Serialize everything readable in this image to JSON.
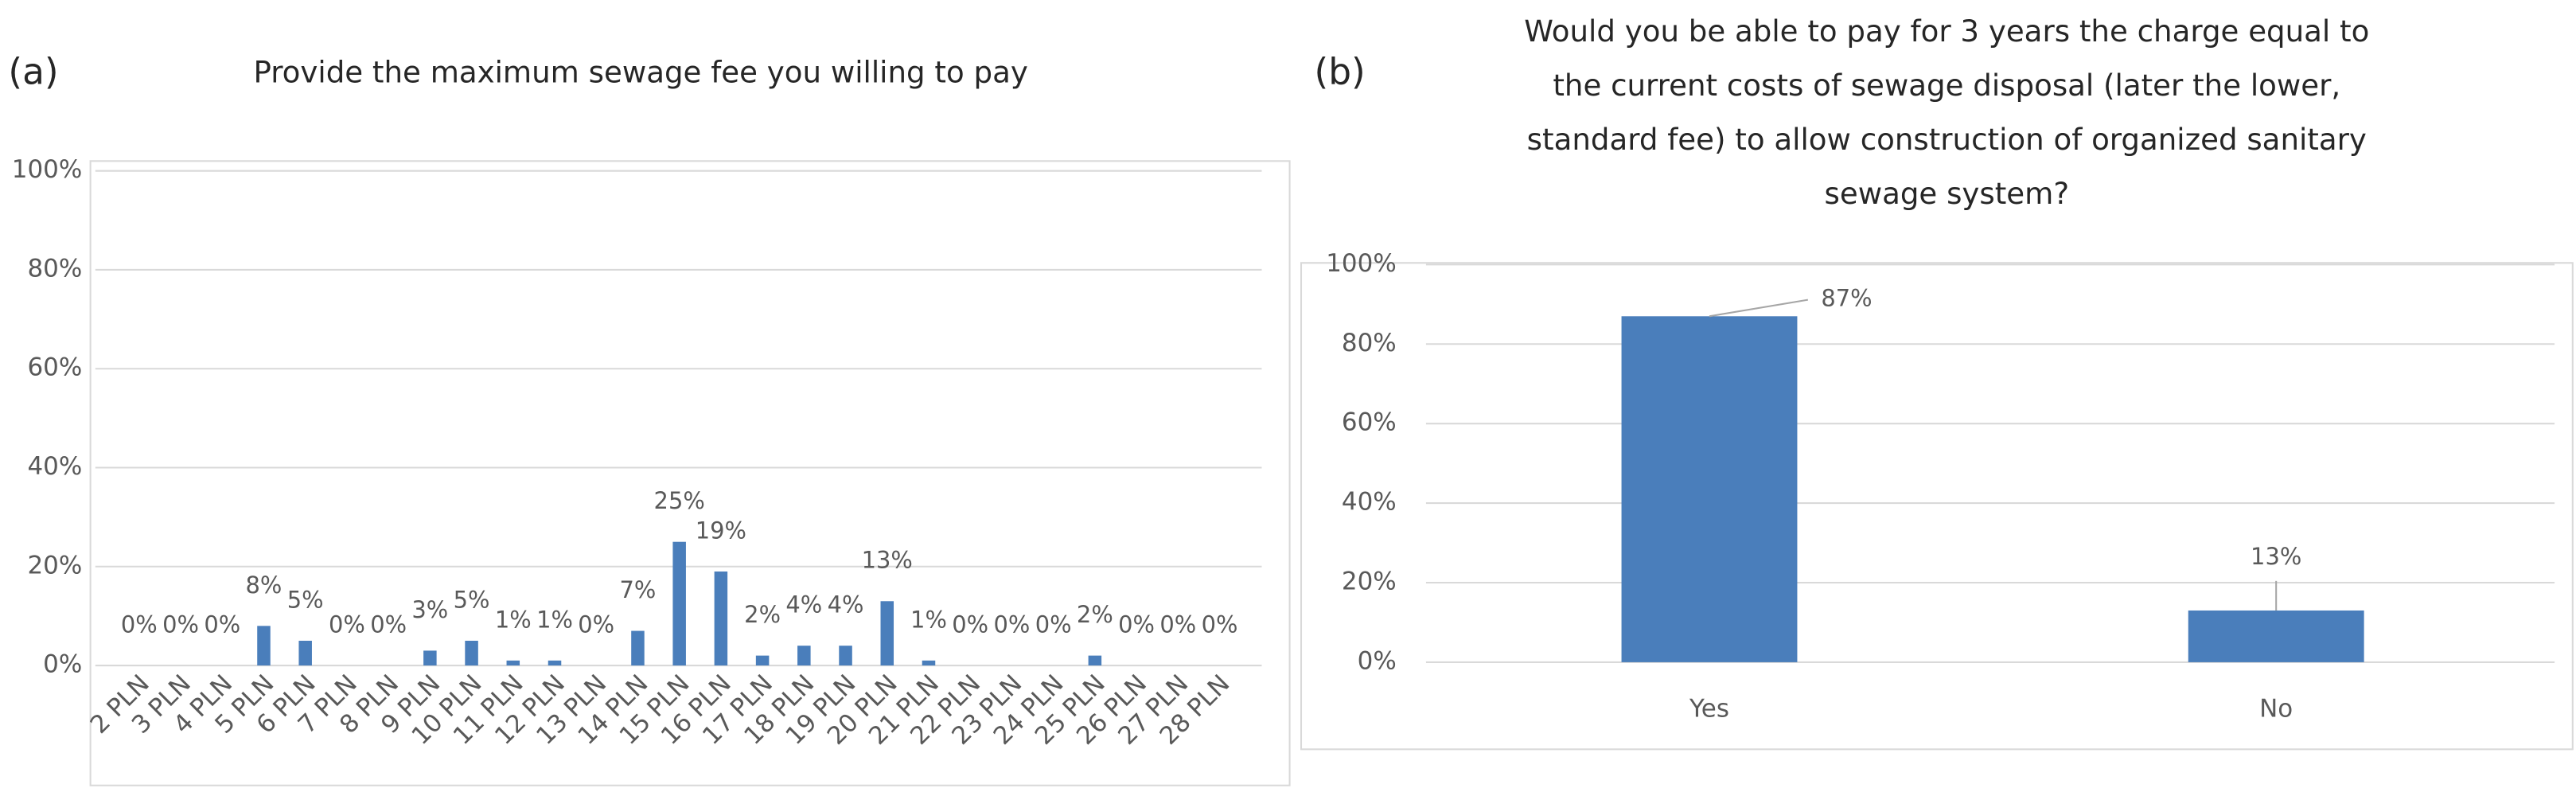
{
  "chart_data": [
    {
      "type": "bar",
      "label": "(a)",
      "title": [
        "Provide the maximum sewage fee you willing to pay"
      ],
      "categories": [
        "2 PLN",
        "3 PLN",
        "4 PLN",
        "5 PLN",
        "6 PLN",
        "7 PLN",
        "8 PLN",
        "9 PLN",
        "10 PLN",
        "11 PLN",
        "12 PLN",
        "13 PLN",
        "14 PLN",
        "15 PLN",
        "16 PLN",
        "17 PLN",
        "18 PLN",
        "19 PLN",
        "20 PLN",
        "21 PLN",
        "22 PLN",
        "23 PLN",
        "24 PLN",
        "25 PLN",
        "26 PLN",
        "27 PLN",
        "28 PLN"
      ],
      "values": [
        0,
        0,
        0,
        8,
        5,
        0,
        0,
        3,
        5,
        1,
        1,
        0,
        7,
        25,
        19,
        2,
        4,
        4,
        13,
        1,
        0,
        0,
        0,
        2,
        0,
        0,
        0
      ],
      "value_labels": [
        "0%",
        "0%",
        "0%",
        "8%",
        "5%",
        "0%",
        "0%",
        "3%",
        "5%",
        "1%",
        "1%",
        "0%",
        "7%",
        "25%",
        "19%",
        "2%",
        "4%",
        "4%",
        "13%",
        "1%",
        "0%",
        "0%",
        "0%",
        "2%",
        "0%",
        "0%",
        "0%"
      ],
      "color": "#4a7ebb",
      "ylim": [
        0,
        100
      ],
      "yticks": [
        {
          "value": 0,
          "label": "0%"
        },
        {
          "value": 20,
          "label": "20%"
        },
        {
          "value": 40,
          "label": "40%"
        },
        {
          "value": 60,
          "label": "60%"
        },
        {
          "value": 80,
          "label": "80%"
        },
        {
          "value": 100,
          "label": "100%"
        }
      ],
      "grid": true
    },
    {
      "type": "bar",
      "label": "(b)",
      "title": [
        "Would you be able to pay for 3 years the charge equal to",
        "the current costs of sewage disposal (later the lower,",
        "standard fee) to allow construction of organized sanitary",
        "sewage system?"
      ],
      "categories": [
        "Yes",
        "No"
      ],
      "values": [
        87,
        13
      ],
      "value_labels": [
        "87%",
        "13%"
      ],
      "color": "#4a7ebb",
      "ylim": [
        0,
        100
      ],
      "yticks": [
        {
          "value": 0,
          "label": "0%"
        },
        {
          "value": 20,
          "label": "20%"
        },
        {
          "value": 40,
          "label": "40%"
        },
        {
          "value": 60,
          "label": "60%"
        },
        {
          "value": 80,
          "label": "80%"
        },
        {
          "value": 100,
          "label": "100%"
        }
      ],
      "grid": true
    }
  ]
}
